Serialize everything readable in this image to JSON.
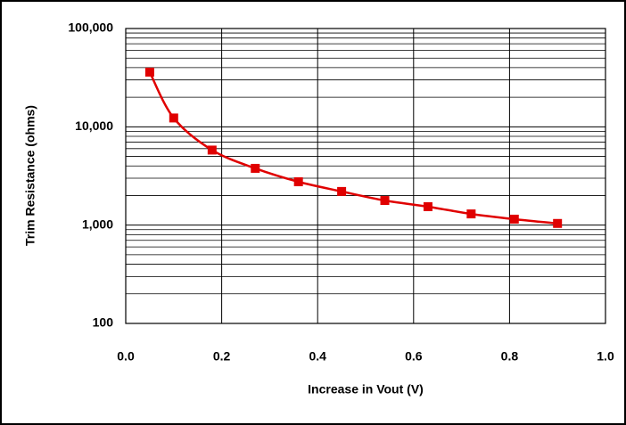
{
  "chart_data": {
    "type": "line",
    "log_y": true,
    "grid": true,
    "x_label": "Increase in Vout (V)",
    "y_label": "Trim Resistance (ohms)",
    "x": [
      0.05,
      0.1,
      0.18,
      0.27,
      0.36,
      0.45,
      0.54,
      0.63,
      0.72,
      0.81,
      0.9
    ],
    "series": [
      {
        "color": "#e00000",
        "values": [
          36000,
          12300,
          5800,
          3780,
          2760,
          2200,
          1780,
          1540,
          1300,
          1150,
          1040
        ]
      }
    ],
    "xlim": [
      0,
      1
    ],
    "xticks": [
      {
        "value": 0,
        "label": "0.0"
      },
      0.2,
      0.4,
      0.6,
      0.8,
      {
        "value": 1,
        "label": "1.0"
      }
    ],
    "ylim": [
      100,
      100000
    ],
    "yticks": [
      {
        "value": 100,
        "label": "100"
      },
      {
        "value": 1000,
        "label": "1,000"
      },
      {
        "value": 10000,
        "label": "10,000"
      },
      {
        "value": 100000,
        "label": "100,000"
      }
    ]
  }
}
